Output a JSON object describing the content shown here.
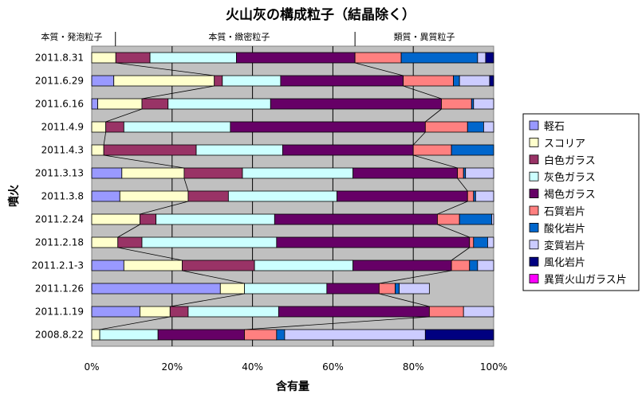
{
  "chart_data": {
    "type": "bar",
    "orientation": "horizontal",
    "stacked": "percent",
    "title": "火山灰の構成粒子（結晶除く）",
    "xlabel": "含有量",
    "ylabel": "噴火",
    "xlim": [
      0,
      100
    ],
    "xticks": [
      "0%",
      "20%",
      "40%",
      "60%",
      "80%",
      "100%"
    ],
    "grid": true,
    "legend_position": "right",
    "group_labels": [
      "本質・発泡粒子",
      "本質・緻密粒子",
      "類質・異質粒子"
    ],
    "categories": [
      "2011.8.31",
      "2011.6.29",
      "2011.6.16",
      "2011.4.9",
      "2011.4.3",
      "2011.3.13",
      "2011.3.8",
      "2011.2.24",
      "2011.2.18",
      "2011.2.1-3",
      "2011.1.26",
      "2011.1.19",
      "2008.8.22"
    ],
    "series": [
      {
        "name": "軽石",
        "color": "#9999ff",
        "values": [
          0,
          5.5,
          1.5,
          0,
          0,
          7.5,
          7,
          0,
          0,
          8,
          32,
          12,
          0
        ]
      },
      {
        "name": "スコリア",
        "color": "#ffffcc",
        "values": [
          6,
          25,
          11,
          3.5,
          3,
          15.5,
          17,
          12,
          6.5,
          14.5,
          6,
          7.5,
          2
        ]
      },
      {
        "name": "白色ガラス",
        "color": "#993366",
        "values": [
          8.5,
          2,
          6.5,
          4.5,
          23,
          14.5,
          10,
          4,
          6,
          18,
          0,
          4.5,
          0
        ]
      },
      {
        "name": "灰色ガラス",
        "color": "#ccffff",
        "values": [
          21.5,
          14.5,
          25.5,
          26.5,
          21.5,
          27.5,
          27,
          29.5,
          33.5,
          24.5,
          20.5,
          22.5,
          14.5
        ]
      },
      {
        "name": "褐色ガラス",
        "color": "#660066",
        "values": [
          29.5,
          30.5,
          42.5,
          48.5,
          32.5,
          26,
          32.5,
          40.5,
          48,
          24.5,
          13,
          37.5,
          21.5
        ]
      },
      {
        "name": "石質岩片",
        "color": "#ff8080",
        "values": [
          11.5,
          12.5,
          7.5,
          10.5,
          9.5,
          1.5,
          1.5,
          5.5,
          1,
          4.5,
          4,
          8.5,
          8
        ]
      },
      {
        "name": "酸化岩片",
        "color": "#0066cc",
        "values": [
          19,
          1.5,
          0.5,
          4,
          10.5,
          0.5,
          0.5,
          8,
          3.5,
          2,
          1,
          0,
          2
        ]
      },
      {
        "name": "変質岩片",
        "color": "#ccccff",
        "values": [
          2,
          7.5,
          5,
          2.5,
          0,
          7,
          4.5,
          0.5,
          1.5,
          4,
          7.5,
          7.5,
          35
        ]
      },
      {
        "name": "風化岩片",
        "color": "#000080",
        "values": [
          2,
          1,
          0,
          0,
          0,
          0,
          0,
          0,
          0,
          0,
          0,
          0,
          17
        ]
      },
      {
        "name": "異質火山ガラス片",
        "color": "#ff00ff",
        "values": [
          0,
          0,
          0,
          0,
          0,
          0,
          0,
          0,
          0,
          0,
          0,
          0,
          0
        ]
      }
    ]
  }
}
